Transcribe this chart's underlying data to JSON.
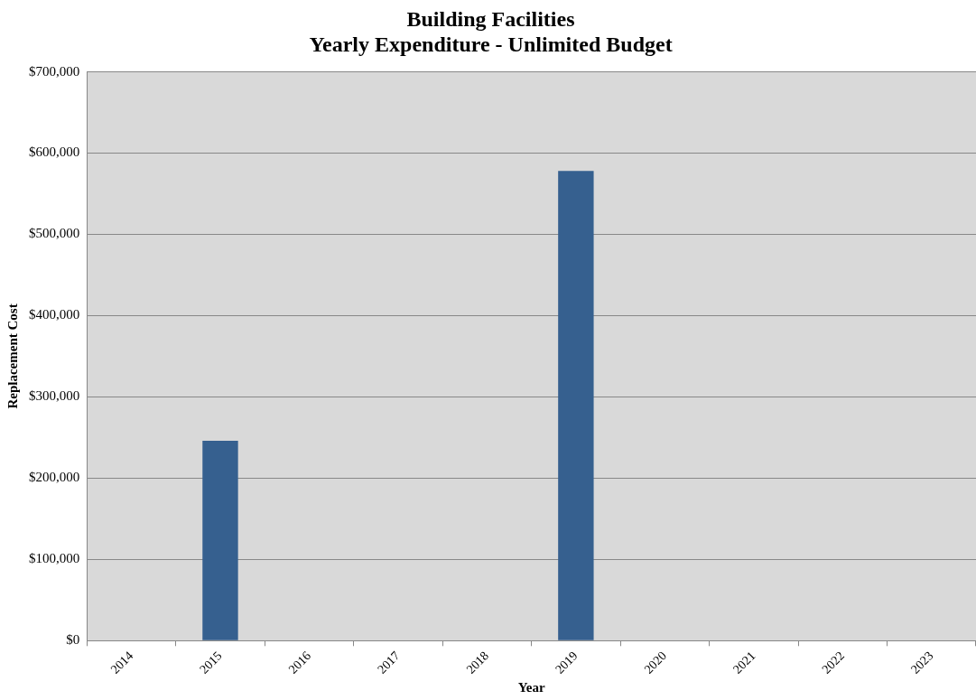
{
  "chart_data": {
    "type": "bar",
    "title": "Building Facilities",
    "subtitle": "Yearly Expenditure - Unlimited Budget",
    "xlabel": "Year",
    "ylabel": "Replacement Cost",
    "categories": [
      "2014",
      "2015",
      "2016",
      "2017",
      "2018",
      "2019",
      "2020",
      "2021",
      "2022",
      "2023"
    ],
    "values": [
      0,
      246000,
      0,
      0,
      0,
      578000,
      0,
      0,
      0,
      0
    ],
    "color": "#36608f",
    "ylim": [
      0,
      700000
    ],
    "yticks": [
      {
        "value": 0,
        "label": "$0"
      },
      {
        "value": 100000,
        "label": "$100,000"
      },
      {
        "value": 200000,
        "label": "$200,000"
      },
      {
        "value": 300000,
        "label": "$300,000"
      },
      {
        "value": 400000,
        "label": "$400,000"
      },
      {
        "value": 500000,
        "label": "$500,000"
      },
      {
        "value": 600000,
        "label": "$600,000"
      },
      {
        "value": 700000,
        "label": "$700,000"
      }
    ],
    "grid": "y",
    "legend": false
  }
}
